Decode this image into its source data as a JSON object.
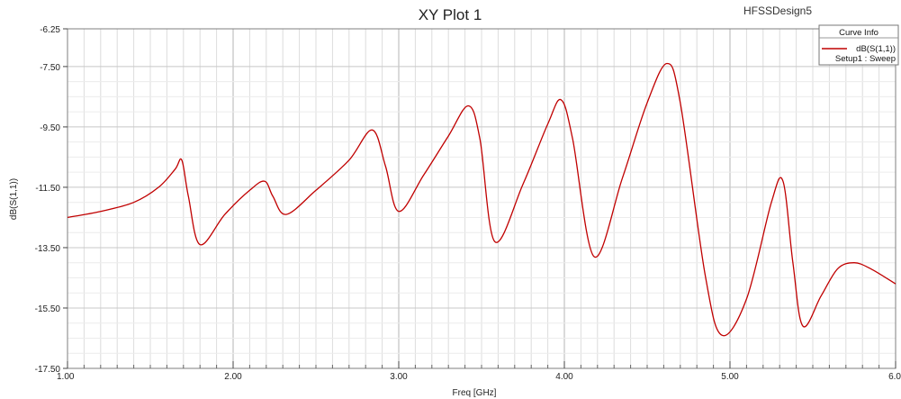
{
  "chart_data": {
    "type": "line",
    "title": "XY Plot 1",
    "design_name": "HFSSDesign5",
    "xlabel": "Freq [GHz]",
    "ylabel": "dB(S(1,1))",
    "xlim": [
      1.0,
      6.0
    ],
    "ylim": [
      -17.5,
      -6.25
    ],
    "x_ticks": [
      1.0,
      2.0,
      3.0,
      4.0,
      5.0,
      6.0
    ],
    "x_tick_labels": [
      "1.00",
      "2.00",
      "3.00",
      "4.00",
      "5.00",
      "6.0"
    ],
    "y_ticks": [
      -6.25,
      -7.5,
      -9.5,
      -11.5,
      -13.5,
      -15.5,
      -17.5
    ],
    "y_tick_labels": [
      "-6.25",
      "-7.50",
      "-9.50",
      "-11.50",
      "-13.50",
      "-15.50",
      "-17.50"
    ],
    "grid": true,
    "legend": {
      "header": "Curve Info",
      "placement": "top-right",
      "entries": [
        {
          "label": "dB(S(1,1))",
          "sublabel": "Setup1 : Sweep",
          "color": "#c00000"
        }
      ]
    },
    "series": [
      {
        "name": "dB(S(1,1))",
        "color": "#c00000",
        "x": [
          1.0,
          1.2,
          1.4,
          1.55,
          1.65,
          1.69,
          1.73,
          1.8,
          1.95,
          2.1,
          2.19,
          2.24,
          2.32,
          2.5,
          2.7,
          2.84,
          2.92,
          3.0,
          3.15,
          3.3,
          3.42,
          3.49,
          3.58,
          3.75,
          3.9,
          3.98,
          4.05,
          4.18,
          4.35,
          4.5,
          4.62,
          4.7,
          4.85,
          4.95,
          5.1,
          5.25,
          5.32,
          5.38,
          5.44,
          5.55,
          5.65,
          5.75,
          5.85,
          6.0
        ],
        "y": [
          -12.5,
          -12.3,
          -12.0,
          -11.5,
          -10.9,
          -10.6,
          -11.8,
          -13.4,
          -12.4,
          -11.6,
          -11.3,
          -11.8,
          -12.4,
          -11.6,
          -10.6,
          -9.6,
          -10.8,
          -12.3,
          -11.1,
          -9.8,
          -8.8,
          -9.9,
          -13.3,
          -11.4,
          -9.4,
          -8.6,
          -9.9,
          -13.8,
          -11.2,
          -8.7,
          -7.4,
          -8.7,
          -14.4,
          -16.4,
          -15.2,
          -12.0,
          -11.3,
          -14.0,
          -16.1,
          -15.1,
          -14.2,
          -14.0,
          -14.2,
          -14.7
        ]
      }
    ]
  }
}
